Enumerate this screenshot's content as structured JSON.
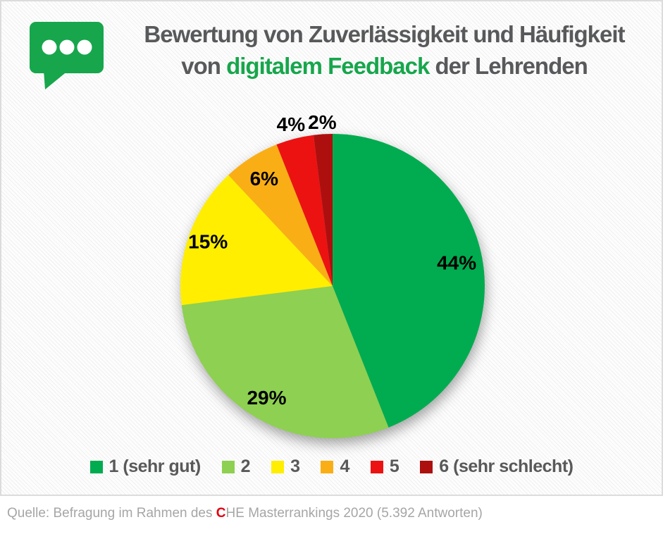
{
  "header": {
    "icon": "speech-bubble",
    "title_line1": "Bewertung von Zuverlässigkeit und Häufigkeit",
    "title_line2_prefix": "von ",
    "title_line2_highlight": "digitalem Feedback",
    "title_line2_suffix": " der Lehrenden",
    "accent_green": "#17A64C",
    "title_gray": "#58595B"
  },
  "chart_data": {
    "type": "pie",
    "title": "Bewertung von Zuverlässigkeit und Häufigkeit von digitalem Feedback der Lehrenden",
    "categories": [
      "1 (sehr gut)",
      "2",
      "3",
      "4",
      "5",
      "6 (sehr schlecht)"
    ],
    "values": [
      44,
      29,
      15,
      6,
      4,
      2
    ],
    "unit": "%",
    "labels": [
      "44%",
      "29%",
      "15%",
      "6%",
      "4%",
      "2%"
    ],
    "colors": [
      "#00AC4F",
      "#8ED051",
      "#FFEE00",
      "#FAAE16",
      "#EC1212",
      "#AD0F0F"
    ],
    "start_angle_deg": 0,
    "direction": "clockwise",
    "legend_position": "bottom",
    "label_radius_fractions": [
      0.83,
      0.85,
      0.87,
      0.84,
      1.1,
      1.08
    ]
  },
  "source": {
    "prefix": "Quelle: Befragung im Rahmen des ",
    "che_c": "C",
    "suffix": "HE Masterrankings 2020 (5.392 Antworten)",
    "highlight_color": "#E3000F"
  }
}
